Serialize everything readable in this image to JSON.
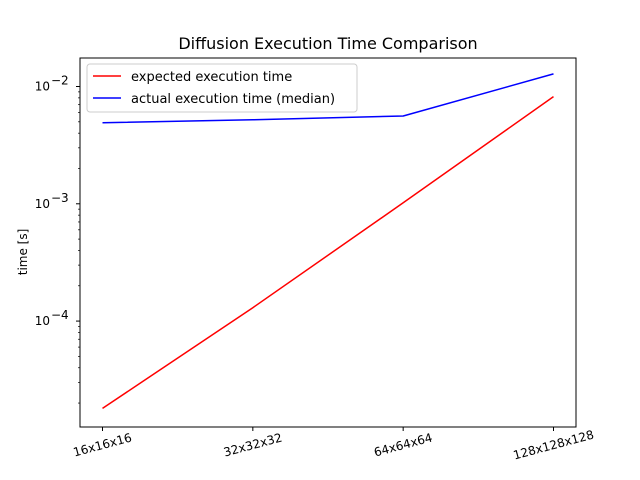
{
  "chart_data": {
    "type": "line",
    "title": "Diffusion Execution Time Comparison",
    "xlabel": "",
    "ylabel": "time [s]",
    "categories": [
      "16x16x16",
      "32x32x32",
      "64x64x64",
      "128x128x128"
    ],
    "y_scale": "log",
    "ylim": [
      1.25e-05,
      0.0175
    ],
    "y_tick_labels": [
      {
        "value": 0.0001,
        "base": "10",
        "exp": "−4"
      },
      {
        "value": 0.001,
        "base": "10",
        "exp": "−3"
      },
      {
        "value": 0.01,
        "base": "10",
        "exp": "−2"
      }
    ],
    "grid": false,
    "legend_position": "top-left",
    "series": [
      {
        "name": "expected execution time",
        "color": "#ff0000",
        "values": [
          1.8e-05,
          0.00013,
          0.00102,
          0.0082
        ]
      },
      {
        "name": "actual execution time (median)",
        "color": "#0000ff",
        "values": [
          0.0049,
          0.0052,
          0.0056,
          0.0128
        ]
      }
    ]
  }
}
